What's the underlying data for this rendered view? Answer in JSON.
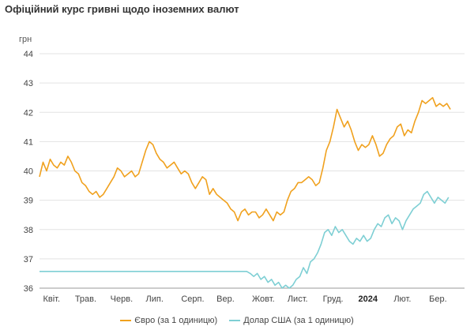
{
  "chart_data": {
    "type": "line",
    "title": "Офіційний курс гривні щодо іноземних валют",
    "ylabel": "грн",
    "ylim": [
      36,
      44
    ],
    "yticks": [
      36,
      37,
      38,
      39,
      40,
      41,
      42,
      43,
      44
    ],
    "x_range": [
      0,
      12
    ],
    "xtick_labels": [
      {
        "label": "Квіт.",
        "x": 0.1,
        "bold": false
      },
      {
        "label": "Трав.",
        "x": 1.0,
        "bold": false
      },
      {
        "label": "Черв.",
        "x": 2.0,
        "bold": false
      },
      {
        "label": "Лип.",
        "x": 3.0,
        "bold": false
      },
      {
        "label": "Серп.",
        "x": 4.0,
        "bold": false
      },
      {
        "label": "Вер.",
        "x": 5.0,
        "bold": false
      },
      {
        "label": "Жовт.",
        "x": 6.0,
        "bold": false
      },
      {
        "label": "Лист.",
        "x": 7.0,
        "bold": false
      },
      {
        "label": "Груд.",
        "x": 8.0,
        "bold": false
      },
      {
        "label": "2024",
        "x": 9.0,
        "bold": true
      },
      {
        "label": "Лют.",
        "x": 10.0,
        "bold": false
      },
      {
        "label": "Бер.",
        "x": 11.0,
        "bold": false
      }
    ],
    "grid": true,
    "legend_position": "bottom",
    "series": [
      {
        "name": "Євро (за 1 одиницю)",
        "color": "#F0A11E",
        "points": [
          [
            0,
            39.8
          ],
          [
            0.1,
            40.3
          ],
          [
            0.2,
            40.0
          ],
          [
            0.3,
            40.4
          ],
          [
            0.4,
            40.2
          ],
          [
            0.5,
            40.1
          ],
          [
            0.6,
            40.3
          ],
          [
            0.7,
            40.2
          ],
          [
            0.8,
            40.5
          ],
          [
            0.9,
            40.3
          ],
          [
            1.0,
            40.0
          ],
          [
            1.1,
            39.9
          ],
          [
            1.2,
            39.6
          ],
          [
            1.3,
            39.5
          ],
          [
            1.4,
            39.3
          ],
          [
            1.5,
            39.2
          ],
          [
            1.6,
            39.3
          ],
          [
            1.7,
            39.1
          ],
          [
            1.8,
            39.2
          ],
          [
            1.9,
            39.4
          ],
          [
            2.0,
            39.6
          ],
          [
            2.1,
            39.8
          ],
          [
            2.2,
            40.1
          ],
          [
            2.3,
            40.0
          ],
          [
            2.4,
            39.8
          ],
          [
            2.5,
            39.9
          ],
          [
            2.6,
            40.0
          ],
          [
            2.7,
            39.8
          ],
          [
            2.8,
            39.9
          ],
          [
            2.9,
            40.3
          ],
          [
            3.0,
            40.7
          ],
          [
            3.1,
            41.0
          ],
          [
            3.2,
            40.9
          ],
          [
            3.3,
            40.6
          ],
          [
            3.4,
            40.4
          ],
          [
            3.5,
            40.3
          ],
          [
            3.6,
            40.1
          ],
          [
            3.7,
            40.2
          ],
          [
            3.8,
            40.3
          ],
          [
            3.9,
            40.1
          ],
          [
            4.0,
            39.9
          ],
          [
            4.1,
            40.0
          ],
          [
            4.2,
            39.9
          ],
          [
            4.3,
            39.6
          ],
          [
            4.4,
            39.4
          ],
          [
            4.5,
            39.6
          ],
          [
            4.6,
            39.8
          ],
          [
            4.7,
            39.7
          ],
          [
            4.8,
            39.2
          ],
          [
            4.9,
            39.4
          ],
          [
            5.0,
            39.2
          ],
          [
            5.1,
            39.1
          ],
          [
            5.2,
            39.0
          ],
          [
            5.3,
            38.9
          ],
          [
            5.4,
            38.7
          ],
          [
            5.5,
            38.6
          ],
          [
            5.6,
            38.3
          ],
          [
            5.7,
            38.6
          ],
          [
            5.8,
            38.7
          ],
          [
            5.9,
            38.5
          ],
          [
            6.0,
            38.6
          ],
          [
            6.1,
            38.6
          ],
          [
            6.2,
            38.4
          ],
          [
            6.3,
            38.5
          ],
          [
            6.4,
            38.7
          ],
          [
            6.5,
            38.5
          ],
          [
            6.6,
            38.3
          ],
          [
            6.7,
            38.6
          ],
          [
            6.8,
            38.5
          ],
          [
            6.9,
            38.6
          ],
          [
            7.0,
            39.0
          ],
          [
            7.1,
            39.3
          ],
          [
            7.2,
            39.4
          ],
          [
            7.3,
            39.6
          ],
          [
            7.4,
            39.6
          ],
          [
            7.5,
            39.7
          ],
          [
            7.6,
            39.8
          ],
          [
            7.7,
            39.7
          ],
          [
            7.8,
            39.5
          ],
          [
            7.9,
            39.6
          ],
          [
            8.0,
            40.1
          ],
          [
            8.1,
            40.7
          ],
          [
            8.2,
            41.0
          ],
          [
            8.3,
            41.5
          ],
          [
            8.4,
            42.1
          ],
          [
            8.5,
            41.8
          ],
          [
            8.6,
            41.5
          ],
          [
            8.7,
            41.7
          ],
          [
            8.8,
            41.4
          ],
          [
            8.9,
            41.0
          ],
          [
            9.0,
            40.7
          ],
          [
            9.1,
            40.9
          ],
          [
            9.2,
            40.8
          ],
          [
            9.3,
            40.9
          ],
          [
            9.4,
            41.2
          ],
          [
            9.5,
            40.9
          ],
          [
            9.6,
            40.5
          ],
          [
            9.7,
            40.6
          ],
          [
            9.8,
            40.9
          ],
          [
            9.9,
            41.1
          ],
          [
            10.0,
            41.2
          ],
          [
            10.1,
            41.5
          ],
          [
            10.2,
            41.6
          ],
          [
            10.3,
            41.2
          ],
          [
            10.4,
            41.4
          ],
          [
            10.5,
            41.3
          ],
          [
            10.6,
            41.7
          ],
          [
            10.7,
            42.0
          ],
          [
            10.8,
            42.4
          ],
          [
            10.9,
            42.3
          ],
          [
            11.0,
            42.4
          ],
          [
            11.1,
            42.5
          ],
          [
            11.2,
            42.2
          ],
          [
            11.3,
            42.3
          ],
          [
            11.4,
            42.2
          ],
          [
            11.5,
            42.3
          ],
          [
            11.6,
            42.1
          ]
        ]
      },
      {
        "name": "Долар США (за 1 одиницю)",
        "color": "#7ECFD4",
        "points": [
          [
            0,
            36.57
          ],
          [
            5.85,
            36.57
          ],
          [
            5.95,
            36.5
          ],
          [
            6.05,
            36.4
          ],
          [
            6.15,
            36.5
          ],
          [
            6.25,
            36.3
          ],
          [
            6.35,
            36.4
          ],
          [
            6.45,
            36.2
          ],
          [
            6.55,
            36.3
          ],
          [
            6.65,
            36.1
          ],
          [
            6.75,
            36.2
          ],
          [
            6.85,
            36.0
          ],
          [
            6.95,
            36.1
          ],
          [
            7.05,
            36.0
          ],
          [
            7.15,
            36.1
          ],
          [
            7.25,
            36.3
          ],
          [
            7.35,
            36.4
          ],
          [
            7.45,
            36.7
          ],
          [
            7.55,
            36.5
          ],
          [
            7.65,
            36.9
          ],
          [
            7.75,
            37.0
          ],
          [
            7.85,
            37.2
          ],
          [
            7.95,
            37.5
          ],
          [
            8.05,
            37.9
          ],
          [
            8.15,
            38.0
          ],
          [
            8.25,
            37.8
          ],
          [
            8.35,
            38.1
          ],
          [
            8.45,
            37.9
          ],
          [
            8.55,
            38.0
          ],
          [
            8.65,
            37.8
          ],
          [
            8.75,
            37.6
          ],
          [
            8.85,
            37.5
          ],
          [
            8.95,
            37.7
          ],
          [
            9.05,
            37.6
          ],
          [
            9.15,
            37.8
          ],
          [
            9.25,
            37.6
          ],
          [
            9.35,
            37.7
          ],
          [
            9.45,
            38.0
          ],
          [
            9.55,
            38.2
          ],
          [
            9.65,
            38.1
          ],
          [
            9.75,
            38.4
          ],
          [
            9.85,
            38.5
          ],
          [
            9.95,
            38.2
          ],
          [
            10.05,
            38.4
          ],
          [
            10.15,
            38.3
          ],
          [
            10.25,
            38.0
          ],
          [
            10.35,
            38.3
          ],
          [
            10.45,
            38.5
          ],
          [
            10.55,
            38.7
          ],
          [
            10.65,
            38.8
          ],
          [
            10.75,
            38.9
          ],
          [
            10.85,
            39.2
          ],
          [
            10.95,
            39.3
          ],
          [
            11.05,
            39.1
          ],
          [
            11.15,
            38.9
          ],
          [
            11.25,
            39.1
          ],
          [
            11.35,
            39.0
          ],
          [
            11.45,
            38.9
          ],
          [
            11.55,
            39.1
          ]
        ]
      }
    ]
  }
}
